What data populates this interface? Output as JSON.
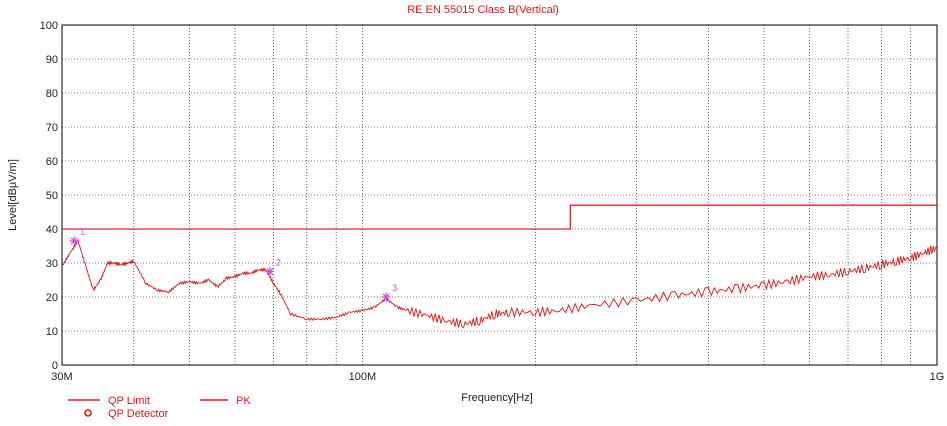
{
  "chart_data": {
    "type": "line",
    "title": "RE EN 55015 Class B(Vertical)",
    "xlabel": "Frequency[Hz]",
    "ylabel": "Level[dBμV/m]",
    "x_scale": "log",
    "xlim": [
      30000000,
      1000000000
    ],
    "ylim": [
      0,
      100
    ],
    "grid": true,
    "y_ticks": [
      0,
      10,
      20,
      30,
      40,
      50,
      60,
      70,
      80,
      90,
      100
    ],
    "x_tick_labels": [
      {
        "value": 30000000,
        "label": "30M"
      },
      {
        "value": 100000000,
        "label": "100M"
      },
      {
        "value": 1000000000,
        "label": "1G"
      }
    ],
    "x_grid_values": [
      40000000,
      50000000,
      60000000,
      70000000,
      80000000,
      90000000,
      100000000,
      200000000,
      300000000,
      400000000,
      500000000,
      600000000,
      700000000,
      800000000,
      900000000
    ],
    "colors": {
      "limit": "#e8202a",
      "pk": "#e01818",
      "marker": "#d050d0",
      "title": "#e01818",
      "detector": "#e01818"
    },
    "series": [
      {
        "name": "QP Limit",
        "x": [
          30000000,
          230000000,
          230000000,
          1000000000
        ],
        "values": [
          40,
          40,
          47,
          47
        ]
      },
      {
        "name": "PK",
        "x": [
          30000000,
          31000000,
          32000000,
          33000000,
          34000000,
          35000000,
          36000000,
          37000000,
          38000000,
          39000000,
          40000000,
          42000000,
          44000000,
          46000000,
          48000000,
          50000000,
          52000000,
          54000000,
          56000000,
          58000000,
          60000000,
          62000000,
          64000000,
          66000000,
          68000000,
          70000000,
          72000000,
          75000000,
          80000000,
          85000000,
          90000000,
          95000000,
          100000000,
          105000000,
          110000000,
          115000000,
          120000000,
          130000000,
          140000000,
          150000000,
          160000000,
          170000000,
          180000000,
          200000000,
          220000000,
          250000000,
          300000000,
          350000000,
          400000000,
          450000000,
          500000000,
          550000000,
          600000000,
          650000000,
          700000000,
          750000000,
          800000000,
          850000000,
          900000000,
          950000000,
          1000000000
        ],
        "values": [
          29,
          33,
          36.5,
          29,
          22,
          25,
          30,
          30,
          29.5,
          30,
          30.5,
          24,
          22,
          21.5,
          24,
          24.5,
          24,
          25,
          23,
          25.5,
          26,
          27,
          27,
          28,
          28,
          24,
          21,
          15,
          13.5,
          13.5,
          14,
          15.5,
          16,
          17,
          19.5,
          17,
          16,
          14.5,
          13,
          12,
          13,
          15,
          15.5,
          15.5,
          16,
          17.5,
          19,
          20.5,
          21.5,
          22.5,
          23.5,
          24.5,
          26,
          26.5,
          27.5,
          28.5,
          29.5,
          30.5,
          31.5,
          33,
          34.5
        ]
      }
    ],
    "markers": [
      {
        "label": "1",
        "x": 31500000,
        "y": 36.5
      },
      {
        "label": "2",
        "x": 69000000,
        "y": 27.5
      },
      {
        "label": "3",
        "x": 110000000,
        "y": 20
      }
    ],
    "legend": {
      "placement": "bottom-left",
      "items": [
        {
          "label": "QP Limit",
          "symbol": "line"
        },
        {
          "label": "PK",
          "symbol": "line"
        },
        {
          "label": "QP Detector",
          "symbol": "circle"
        }
      ]
    }
  }
}
